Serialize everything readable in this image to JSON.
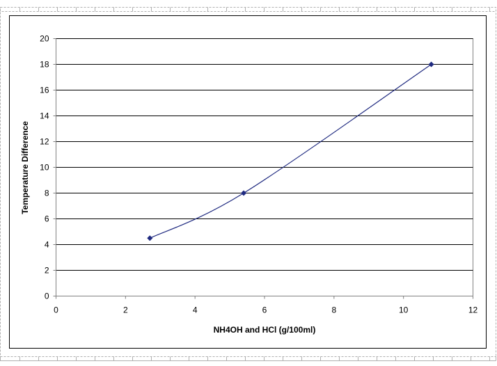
{
  "chart_data": {
    "type": "line",
    "title": "",
    "xlabel": "NH4OH and HCl (g/100ml)",
    "ylabel": "Temperature Difference",
    "xlim": [
      0,
      12
    ],
    "ylim": [
      0,
      20
    ],
    "xticks": [
      0,
      2,
      4,
      6,
      8,
      10,
      12
    ],
    "yticks": [
      0,
      2,
      4,
      6,
      8,
      10,
      12,
      14,
      16,
      18,
      20
    ],
    "grid": {
      "horizontal": true,
      "vertical": false
    },
    "legend": "none",
    "series": [
      {
        "x": [
          2.7,
          5.4,
          10.8
        ],
        "y": [
          4.5,
          8,
          18
        ],
        "color": "#1f2a80",
        "marker": "diamond",
        "smooth": true
      }
    ]
  }
}
